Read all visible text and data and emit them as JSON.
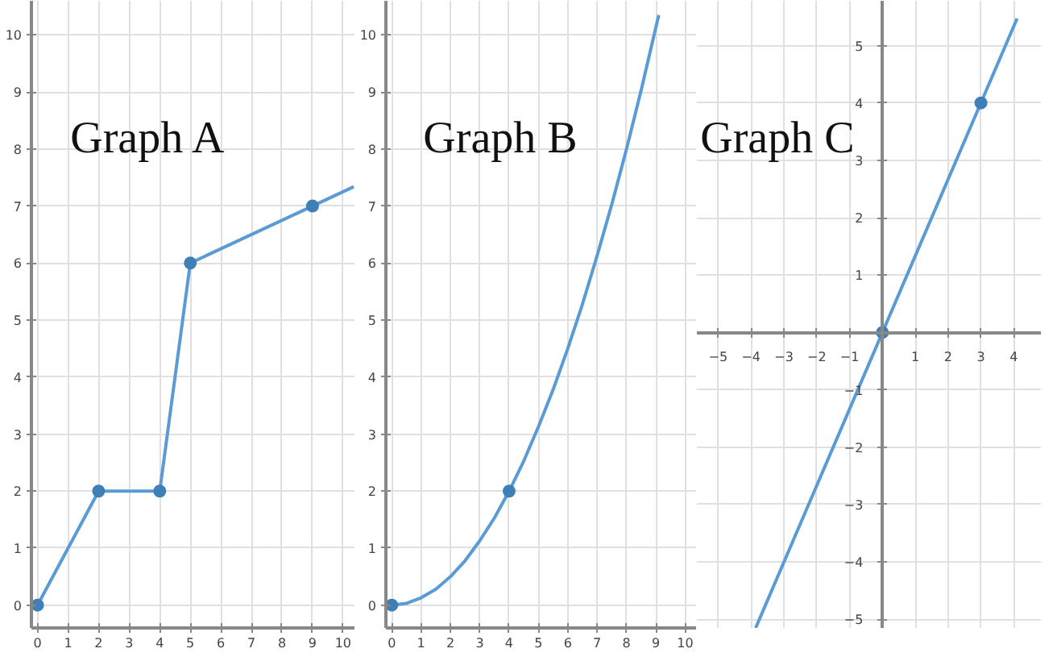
{
  "chart_data": [
    {
      "type": "line",
      "title": "Graph A",
      "xlim": [
        -0.2,
        10.4
      ],
      "ylim": [
        -0.4,
        10.6
      ],
      "xticks": [
        0,
        1,
        2,
        3,
        4,
        5,
        6,
        7,
        8,
        9,
        10
      ],
      "yticks": [
        0,
        1,
        2,
        3,
        4,
        5,
        6,
        7,
        8,
        9,
        10
      ],
      "grid": true,
      "line_style": "solid",
      "series": [
        {
          "color": "#5b9bd5",
          "x": [
            0,
            2,
            4,
            5,
            9,
            10.35
          ],
          "values": [
            0,
            2,
            2,
            6,
            7,
            7.34
          ]
        },
        {
          "type": "scatter",
          "marker": "circle",
          "color": "#3f7fb8",
          "x": [
            0,
            2,
            4,
            5,
            9
          ],
          "values": [
            0,
            2,
            2,
            6,
            7
          ]
        }
      ]
    },
    {
      "type": "line",
      "title": "Graph B",
      "xlim": [
        -0.2,
        10.4
      ],
      "ylim": [
        -0.4,
        10.6
      ],
      "xticks": [
        0,
        1,
        2,
        3,
        4,
        5,
        6,
        7,
        8,
        9,
        10
      ],
      "yticks": [
        0,
        1,
        2,
        3,
        4,
        5,
        6,
        7,
        8,
        9,
        10
      ],
      "grid": true,
      "line_style": "solid",
      "series": [
        {
          "color": "#5b9bd5",
          "x": [
            -0.2,
            0,
            0.5,
            1,
            1.5,
            2,
            2.5,
            3,
            3.5,
            4,
            4.5,
            5,
            5.5,
            6,
            6.5,
            7,
            7.5,
            8,
            8.5,
            9,
            9.1
          ],
          "values": [
            0,
            0,
            0.03,
            0.13,
            0.28,
            0.5,
            0.78,
            1.13,
            1.53,
            2,
            2.53,
            3.13,
            3.78,
            4.5,
            5.28,
            6.13,
            7.03,
            8,
            9.03,
            10.13,
            10.35
          ]
        },
        {
          "type": "scatter",
          "marker": "circle",
          "color": "#3f7fb8",
          "x": [
            0,
            4
          ],
          "values": [
            0,
            2
          ]
        }
      ]
    },
    {
      "type": "line",
      "title": "Graph C",
      "xlim": [
        -5.65,
        4.85
      ],
      "ylim": [
        -5.15,
        5.78
      ],
      "xticks": [
        -5,
        -4,
        -3,
        -2,
        -1,
        {
          "value": 0,
          "label": null
        },
        1,
        2,
        3,
        4
      ],
      "yticks": [
        -5,
        -4,
        -3,
        -2,
        -1,
        1,
        2,
        3,
        4,
        5
      ],
      "grid": true,
      "line_style": "solid",
      "series": [
        {
          "color": "#5b9bd5",
          "x": [
            -3.86,
            4.1
          ],
          "values": [
            -5.15,
            5.47
          ]
        },
        {
          "type": "scatter",
          "marker": "circle",
          "color": "#3f7fb8",
          "x": [
            0,
            3
          ],
          "values": [
            0,
            4
          ]
        }
      ]
    }
  ]
}
